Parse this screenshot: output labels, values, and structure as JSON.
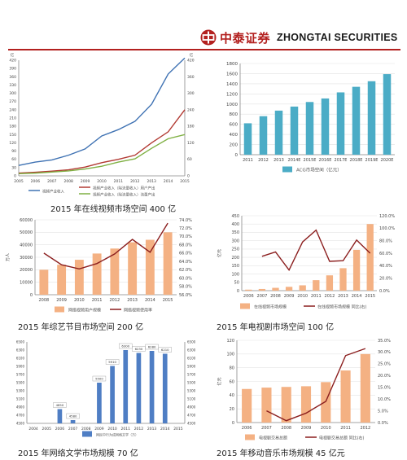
{
  "header": {
    "brand_cn": "中泰证券",
    "brand_en": "ZHONGTAI SECURITIES",
    "brand_color": "#b3201f"
  },
  "captions": {
    "c1": "2015 年在线视频市场空间 400 亿",
    "c3": "2015 年综艺节目市场空间 200 亿",
    "c4": "2015 年电视剧市场空间 100 亿",
    "c5": "2015 年网络文学市场规模 70 亿",
    "c6": "2015 年移动音乐市场规模 45 亿元"
  },
  "chart_data": [
    {
      "id": "c1",
      "type": "line",
      "x": [
        "2005",
        "2006",
        "2007",
        "2008",
        "2009",
        "2010",
        "2011",
        "2012",
        "2013",
        "2014",
        "2015"
      ],
      "ylim_left": [
        0,
        420
      ],
      "left_ticks": [
        "0",
        "30",
        "60",
        "90",
        "120",
        "150",
        "180",
        "210",
        "240",
        "270",
        "300",
        "330",
        "360",
        "390",
        "420"
      ],
      "ylim_right": [
        0,
        420
      ],
      "right_ticks": [
        "0",
        "60",
        "120",
        "180",
        "240",
        "300",
        "360",
        "420"
      ],
      "left_unit": "亿",
      "right_unit": "亿",
      "series": [
        {
          "name": "视频产业收入",
          "color": "#3f72b3",
          "values": [
            38,
            50,
            58,
            75,
            98,
            145,
            168,
            198,
            260,
            370,
            428
          ]
        },
        {
          "name": "视频产业收入（除流量收入）用户产出",
          "color": "#b23a33",
          "values": [
            10,
            13,
            17,
            22,
            32,
            48,
            60,
            75,
            120,
            160,
            240
          ]
        },
        {
          "name": "视频产业收入（除流量收入）流量产出",
          "color": "#7fb043",
          "values": [
            8,
            10,
            14,
            18,
            25,
            35,
            50,
            62,
            100,
            135,
            150
          ]
        }
      ]
    },
    {
      "id": "c2",
      "type": "bar",
      "categories": [
        "2011",
        "2012",
        "2013",
        "2014E",
        "2015E",
        "2016E",
        "2017E",
        "2018E",
        "2019E",
        "2020E"
      ],
      "values": [
        620,
        760,
        870,
        950,
        1040,
        1110,
        1230,
        1340,
        1450,
        1590
      ],
      "ylim": [
        0,
        1800
      ],
      "ticks": [
        "0",
        "200",
        "400",
        "600",
        "800",
        "1000",
        "1200",
        "1400",
        "1600",
        "1800"
      ],
      "color": "#4bacc6",
      "series_name": "ACG市场空间（亿元）"
    },
    {
      "id": "c3",
      "type": "bar+line",
      "categories": [
        "2008",
        "2009",
        "2010",
        "2011",
        "2012",
        "2013",
        "2014",
        "2015"
      ],
      "bar": {
        "name": "网络视频用户规模",
        "color": "#f4b183",
        "values": [
          20000,
          24000,
          28000,
          33000,
          37000,
          42000,
          44000,
          50000
        ]
      },
      "line": {
        "name": "网络视频使用率",
        "color": "#8b1e1e",
        "values": [
          66.0,
          63.2,
          62.2,
          63.5,
          65.8,
          69.3,
          66.2,
          73.2
        ]
      },
      "ylim_left": [
        0,
        60000
      ],
      "left_ticks": [
        "0",
        "10000",
        "20000",
        "30000",
        "40000",
        "50000",
        "60000"
      ],
      "left_unit": "万人",
      "ylim_right": [
        56.0,
        74.0
      ],
      "right_ticks": [
        "56.0%",
        "58.0%",
        "60.0%",
        "62.0%",
        "64.0%",
        "66.0%",
        "68.0%",
        "70.0%",
        "72.0%",
        "74.0%"
      ]
    },
    {
      "id": "c4",
      "type": "bar+line",
      "categories": [
        "2006",
        "2007",
        "2008",
        "2009",
        "2010",
        "2011",
        "2012",
        "2013",
        "2014",
        "2015"
      ],
      "bar": {
        "name": "在线视频市场规模",
        "color": "#f4b183",
        "values": [
          6,
          10,
          17,
          23,
          32,
          63,
          92,
          135,
          245,
          400
        ]
      },
      "line": {
        "name": "在线视频市场规模 同比(右)",
        "color": "#8b1e1e",
        "values": [
          null,
          55,
          62,
          33,
          78,
          97,
          47,
          48,
          81,
          60
        ]
      },
      "ylim_left": [
        0,
        450
      ],
      "left_ticks": [
        "0",
        "50",
        "100",
        "150",
        "200",
        "250",
        "300",
        "350",
        "400",
        "450"
      ],
      "left_unit": "亿元",
      "ylim_right": [
        0,
        120
      ],
      "right_ticks": [
        "0.0%",
        "20.0%",
        "40.0%",
        "60.0%",
        "80.0%",
        "100.0%",
        "120.0%"
      ]
    },
    {
      "id": "c5",
      "type": "bar",
      "categories": [
        "2004",
        "2005",
        "2006",
        "2007",
        "2008",
        "2009",
        "2010",
        "2011",
        "2012",
        "2013",
        "2014",
        "2015"
      ],
      "values": [
        null,
        null,
        4850,
        4580,
        null,
        5500,
        5910,
        6300,
        6230,
        6280,
        6210,
        null
      ],
      "ylim": [
        4500,
        6500
      ],
      "left_ticks": [
        "4500",
        "4700",
        "4900",
        "5100",
        "5300",
        "5500",
        "5700",
        "5900",
        "6100",
        "6300",
        "6500"
      ],
      "right_ticks": [
        "4500",
        "4700",
        "4900",
        "5100",
        "5300",
        "5500",
        "5700",
        "5900",
        "6100",
        "6300",
        "6500"
      ],
      "color": "#4f7ec4",
      "series_name": "网民中行为成网络文学（万）"
    },
    {
      "id": "c6",
      "type": "bar+line",
      "categories": [
        "2006",
        "2007",
        "2008",
        "2009",
        "2010",
        "2011",
        "2012"
      ],
      "bar": {
        "name": "电视剧交易总额",
        "color": "#f4b183",
        "values": [
          49,
          51,
          52,
          53,
          59,
          76,
          100
        ]
      },
      "line": {
        "name": "电视剧交易总额 同比(右)",
        "color": "#8b1e1e",
        "values": [
          null,
          5.0,
          0.8,
          4.0,
          9.0,
          28.5,
          31.5
        ]
      },
      "ylim_left": [
        0,
        120
      ],
      "left_ticks": [
        "0",
        "20",
        "40",
        "60",
        "80",
        "100",
        "120"
      ],
      "left_unit": "亿元",
      "ylim_right": [
        0,
        35
      ],
      "right_ticks": [
        "0.0%",
        "5.0%",
        "10.0%",
        "15.0%",
        "20.0%",
        "25.0%",
        "30.0%",
        "35.0%"
      ]
    }
  ]
}
